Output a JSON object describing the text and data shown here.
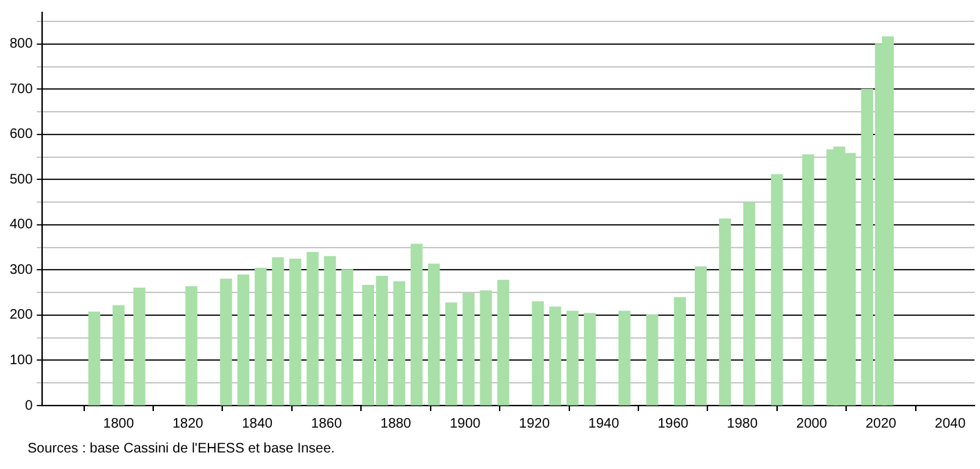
{
  "chart_data": {
    "type": "bar",
    "x": [
      1793,
      1800,
      1806,
      1821,
      1831,
      1836,
      1841,
      1846,
      1851,
      1856,
      1861,
      1866,
      1872,
      1876,
      1881,
      1886,
      1891,
      1896,
      1901,
      1906,
      1911,
      1921,
      1926,
      1931,
      1936,
      1946,
      1954,
      1962,
      1968,
      1975,
      1982,
      1990,
      1999,
      2006,
      2008,
      2011,
      2016,
      2020,
      2022
    ],
    "values": [
      207,
      221,
      260,
      263,
      280,
      289,
      304,
      327,
      324,
      339,
      330,
      301,
      266,
      286,
      274,
      357,
      313,
      227,
      248,
      254,
      277,
      230,
      218,
      209,
      204,
      209,
      201,
      239,
      307,
      413,
      449,
      511,
      555,
      566,
      572,
      558,
      700,
      800,
      816
    ],
    "color": "#a8e0a8",
    "xlim": [
      1778,
      2047
    ],
    "xticks": [
      1800,
      1820,
      1840,
      1860,
      1880,
      1900,
      1920,
      1940,
      1960,
      1980,
      2000,
      2020,
      2040
    ],
    "ylim": [
      0,
      870
    ],
    "yticks": [
      0,
      {
        "value": 50,
        "label": null
      },
      100,
      {
        "value": 150,
        "label": null
      },
      200,
      {
        "value": 250,
        "label": null
      },
      300,
      {
        "value": 350,
        "label": null
      },
      400,
      {
        "value": 450,
        "label": null
      },
      500,
      {
        "value": 550,
        "label": null
      },
      600,
      {
        "value": 650,
        "label": null
      },
      700,
      {
        "value": 750,
        "label": null
      },
      800,
      {
        "value": 850,
        "label": null
      }
    ],
    "grid": "y",
    "legend": false,
    "annotations": [
      "Sources : base Cassini de l'EHESS et base Insee."
    ]
  }
}
